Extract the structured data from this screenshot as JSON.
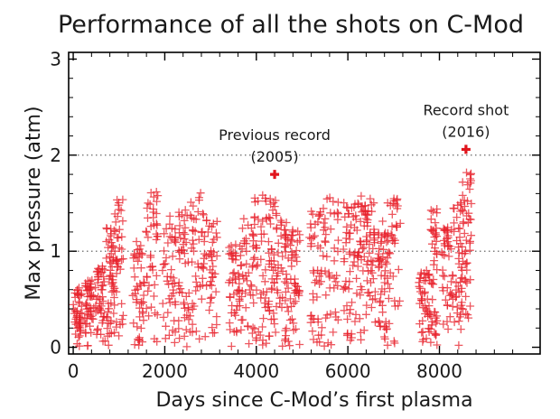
{
  "chart_data": {
    "type": "scatter",
    "title": "Performance of all the shots on C-Mod",
    "xlabel": "Days since C-Mod’s first plasma",
    "ylabel": "Max pressure (atm)",
    "xlim": [
      -100,
      10200
    ],
    "ylim": [
      -0.07,
      3.07
    ],
    "x_ticks": [
      0,
      2000,
      4000,
      6000,
      8000
    ],
    "y_ticks": [
      0,
      1,
      2,
      3
    ],
    "gridlines_y": [
      1,
      2
    ],
    "grid": "dotted horizontal at y=1 and y=2",
    "marker": "plus",
    "colors": {
      "shots": "#e8202a",
      "record": "#e0141c",
      "frame": "#000000",
      "grid": "#555555"
    },
    "campaigns": [
      {
        "start": 0,
        "end": 200,
        "max": 0.62
      },
      {
        "start": 250,
        "end": 450,
        "max": 0.7
      },
      {
        "start": 480,
        "end": 700,
        "max": 0.85
      },
      {
        "start": 720,
        "end": 880,
        "max": 1.25
      },
      {
        "start": 880,
        "end": 1100,
        "max": 1.58
      },
      {
        "start": 1300,
        "end": 1550,
        "max": 1.12
      },
      {
        "start": 1550,
        "end": 1850,
        "max": 1.62
      },
      {
        "start": 1950,
        "end": 2250,
        "max": 1.4
      },
      {
        "start": 2300,
        "end": 2550,
        "max": 1.5
      },
      {
        "start": 2550,
        "end": 2850,
        "max": 1.66
      },
      {
        "start": 2850,
        "end": 3150,
        "max": 1.35
      },
      {
        "start": 3400,
        "end": 3650,
        "max": 1.1
      },
      {
        "start": 3650,
        "end": 3950,
        "max": 1.38
      },
      {
        "start": 3950,
        "end": 4250,
        "max": 1.62
      },
      {
        "start": 4250,
        "end": 4450,
        "max": 1.55
      },
      {
        "start": 4450,
        "end": 4700,
        "max": 1.42
      },
      {
        "start": 4700,
        "end": 4950,
        "max": 1.3
      },
      {
        "start": 5150,
        "end": 5450,
        "max": 1.42
      },
      {
        "start": 5450,
        "end": 5800,
        "max": 1.6
      },
      {
        "start": 5900,
        "end": 6150,
        "max": 1.52
      },
      {
        "start": 6150,
        "end": 6400,
        "max": 1.65
      },
      {
        "start": 6400,
        "end": 6600,
        "max": 1.55
      },
      {
        "start": 6650,
        "end": 6850,
        "max": 1.32
      },
      {
        "start": 6850,
        "end": 7150,
        "max": 1.55
      },
      {
        "start": 7550,
        "end": 7800,
        "max": 0.8
      },
      {
        "start": 7800,
        "end": 7950,
        "max": 1.45
      },
      {
        "start": 8050,
        "end": 8300,
        "max": 1.25
      },
      {
        "start": 8300,
        "end": 8500,
        "max": 1.62
      },
      {
        "start": 8500,
        "end": 8700,
        "max": 1.85
      }
    ],
    "records": [
      {
        "x": 4400,
        "y": 1.8,
        "label_line1": "Previous record",
        "label_line2": "(2005)"
      },
      {
        "x": 8580,
        "y": 2.06,
        "label_line1": "Record shot",
        "label_line2": "(2016)"
      }
    ]
  }
}
